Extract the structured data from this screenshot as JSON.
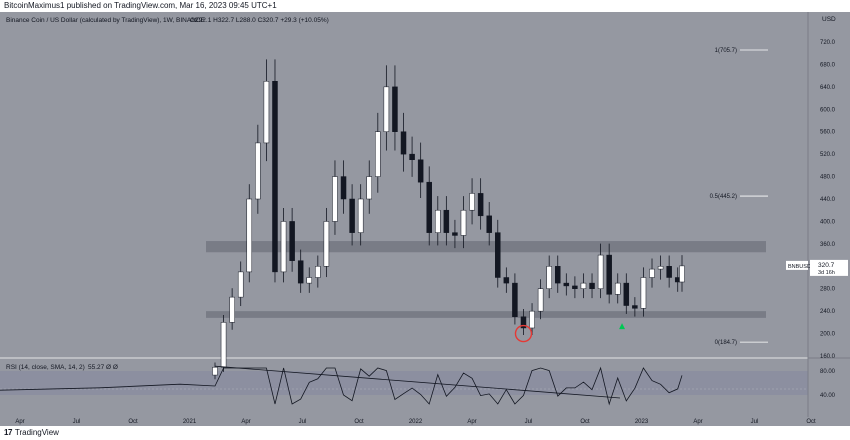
{
  "publish_line": "BitcoinMaximus1 published on TradingView.com, Mar 16, 2023 09:45 UTC+1",
  "header": {
    "title": "Binance Coin / US Dollar (calculated by TradingView), 1W, BINANCE",
    "ohlc": "O292.1 H322.7 L288.0 C320.7 +29.3 (+10.05%)"
  },
  "price_axis": {
    "currency": "USD",
    "ticks": [
      "720.0",
      "680.0",
      "640.0",
      "600.0",
      "560.0",
      "520.0",
      "480.0",
      "440.0",
      "400.0",
      "360.0",
      "320.0",
      "280.0",
      "240.0",
      "200.0",
      "160.0"
    ]
  },
  "price_label": {
    "symbol": "BNBUSD",
    "price": "320.7",
    "countdown": "3d 16h"
  },
  "fib_levels": [
    {
      "label": "1(705.7)",
      "value": 705.7
    },
    {
      "label": "0.5(445.2)",
      "value": 445.2
    },
    {
      "label": "0(184.7)",
      "value": 184.7
    }
  ],
  "rsi": {
    "label": "RSI (14, close, SMA, 14, 2)",
    "value_label": "55.27",
    "extra": "Ø Ø",
    "ticks": [
      "80.00",
      "40.00"
    ]
  },
  "time_axis": [
    "Apr",
    "Jul",
    "Oct",
    "2021",
    "Apr",
    "Jul",
    "Oct",
    "2022",
    "Apr",
    "Jul",
    "Oct",
    "2023",
    "Apr",
    "Jul",
    "Oct"
  ],
  "footer": {
    "brand": "TradingView"
  },
  "colors": {
    "background": "#9598a1",
    "up_candle": "#ffffff",
    "down_candle": "#131722",
    "support_zone": "#6a6d78",
    "marker_circle": "#e53935",
    "marker_arrow": "#00c853"
  },
  "chart_data": {
    "type": "candlestick",
    "title": "Binance Coin / US Dollar (calculated by TradingView), 1W, BINANCE",
    "timeframe": "1W",
    "ylim": [
      160,
      740
    ],
    "y_scale": "linear",
    "zones": [
      {
        "name": "resistance",
        "low": 345,
        "high": 365
      },
      {
        "name": "support",
        "low": 228,
        "high": 240
      }
    ],
    "close_series": [
      {
        "date": "2021-02-08",
        "close": 140
      },
      {
        "date": "2021-02-22",
        "close": 220
      },
      {
        "date": "2021-03-08",
        "close": 265
      },
      {
        "date": "2021-03-22",
        "close": 310
      },
      {
        "date": "2021-04-05",
        "close": 440
      },
      {
        "date": "2021-04-19",
        "close": 540
      },
      {
        "date": "2021-05-03",
        "close": 650
      },
      {
        "date": "2021-05-17",
        "close": 310
      },
      {
        "date": "2021-05-31",
        "close": 400
      },
      {
        "date": "2021-06-14",
        "close": 330
      },
      {
        "date": "2021-06-28",
        "close": 290
      },
      {
        "date": "2021-07-12",
        "close": 300
      },
      {
        "date": "2021-07-26",
        "close": 320
      },
      {
        "date": "2021-08-09",
        "close": 400
      },
      {
        "date": "2021-08-23",
        "close": 480
      },
      {
        "date": "2021-09-06",
        "close": 440
      },
      {
        "date": "2021-09-20",
        "close": 380
      },
      {
        "date": "2021-10-04",
        "close": 440
      },
      {
        "date": "2021-10-18",
        "close": 480
      },
      {
        "date": "2021-11-01",
        "close": 560
      },
      {
        "date": "2021-11-15",
        "close": 640
      },
      {
        "date": "2021-11-29",
        "close": 560
      },
      {
        "date": "2021-12-13",
        "close": 520
      },
      {
        "date": "2021-12-27",
        "close": 510
      },
      {
        "date": "2022-01-10",
        "close": 470
      },
      {
        "date": "2022-01-24",
        "close": 380
      },
      {
        "date": "2022-02-07",
        "close": 420
      },
      {
        "date": "2022-02-21",
        "close": 380
      },
      {
        "date": "2022-03-07",
        "close": 375
      },
      {
        "date": "2022-03-21",
        "close": 420
      },
      {
        "date": "2022-04-04",
        "close": 450
      },
      {
        "date": "2022-04-18",
        "close": 410
      },
      {
        "date": "2022-05-02",
        "close": 380
      },
      {
        "date": "2022-05-16",
        "close": 300
      },
      {
        "date": "2022-05-30",
        "close": 290
      },
      {
        "date": "2022-06-13",
        "close": 230
      },
      {
        "date": "2022-06-27",
        "close": 210
      },
      {
        "date": "2022-07-11",
        "close": 240
      },
      {
        "date": "2022-07-25",
        "close": 280
      },
      {
        "date": "2022-08-08",
        "close": 320
      },
      {
        "date": "2022-08-22",
        "close": 290
      },
      {
        "date": "2022-09-05",
        "close": 285
      },
      {
        "date": "2022-09-19",
        "close": 280
      },
      {
        "date": "2022-10-03",
        "close": 290
      },
      {
        "date": "2022-10-17",
        "close": 280
      },
      {
        "date": "2022-10-31",
        "close": 340
      },
      {
        "date": "2022-11-14",
        "close": 270
      },
      {
        "date": "2022-11-28",
        "close": 290
      },
      {
        "date": "2022-12-12",
        "close": 250
      },
      {
        "date": "2022-12-26",
        "close": 245
      },
      {
        "date": "2023-01-09",
        "close": 300
      },
      {
        "date": "2023-01-23",
        "close": 315
      },
      {
        "date": "2023-02-06",
        "close": 320
      },
      {
        "date": "2023-02-20",
        "close": 300
      },
      {
        "date": "2023-03-06",
        "close": 292
      },
      {
        "date": "2023-03-13",
        "close": 320.7
      }
    ]
  }
}
